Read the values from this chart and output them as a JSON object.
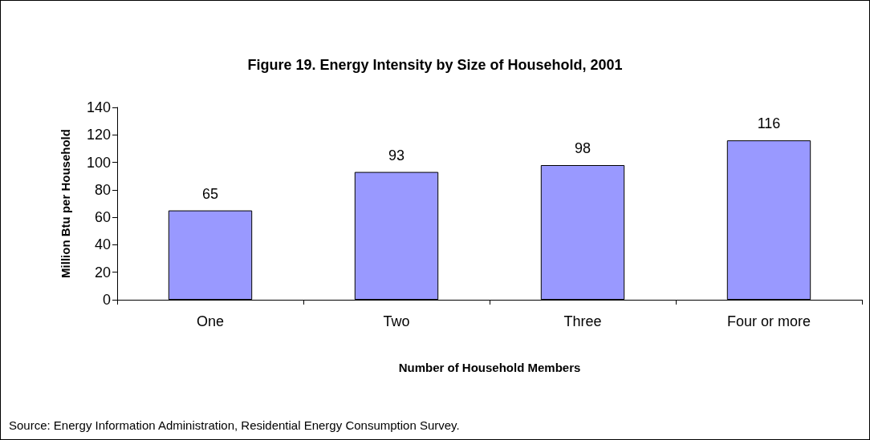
{
  "chart_data": {
    "type": "bar",
    "title": "Figure 19. Energy Intensity by Size of Household, 2001",
    "xlabel": "Number of Household Members",
    "ylabel": "Million Btu per Household",
    "categories": [
      "One",
      "Two",
      "Three",
      "Four or more"
    ],
    "values": [
      65,
      93,
      98,
      116
    ],
    "color": "#9999ff",
    "data_labels": true,
    "ylim": [
      0,
      140
    ],
    "yticks": [
      0,
      20,
      40,
      60,
      80,
      100,
      120,
      140
    ],
    "grid": false,
    "annotations": [
      "Source: Energy Information Administration, Residential Energy Consumption Survey."
    ]
  }
}
